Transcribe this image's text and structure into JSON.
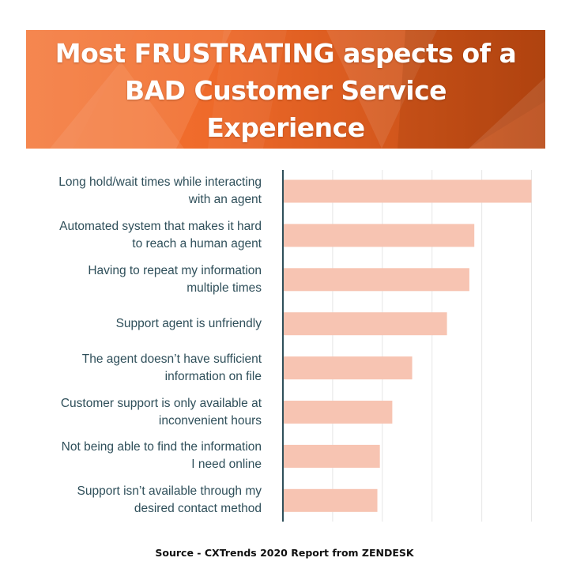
{
  "banner": {
    "title_line1": "Most FRUSTRATING aspects of a",
    "title_line2": "BAD Customer Service",
    "title_line3": "Experience"
  },
  "colors": {
    "bar": "#f7c4b2",
    "axis": "#2f4f5a",
    "grid": "#e6e6e6",
    "label": "#2f4f5a",
    "banner_start": "#f47a3c",
    "banner_end": "#b84712"
  },
  "chart_data": {
    "type": "bar",
    "orientation": "horizontal",
    "categories": [
      [
        "Long hold/wait times while interacting",
        "with an agent"
      ],
      [
        "Automated system that makes it hard",
        "to reach a human agent"
      ],
      [
        "Having to repeat my information",
        "multiple times"
      ],
      [
        "Support agent is unfriendly"
      ],
      [
        "The agent doesn’t have sufficient",
        "information on file"
      ],
      [
        "Customer support is only available at",
        "inconvenient hours"
      ],
      [
        "Not being able to find the information",
        "I need online"
      ],
      [
        "Support isn’t available through my",
        "desired contact method"
      ]
    ],
    "values": [
      100,
      77,
      75,
      66,
      52,
      44,
      39,
      38
    ],
    "xlim": [
      0,
      110
    ],
    "grid": true,
    "legend": "none"
  },
  "footer": {
    "source": "Source - CXTrends 2020 Report from ZENDESK"
  }
}
